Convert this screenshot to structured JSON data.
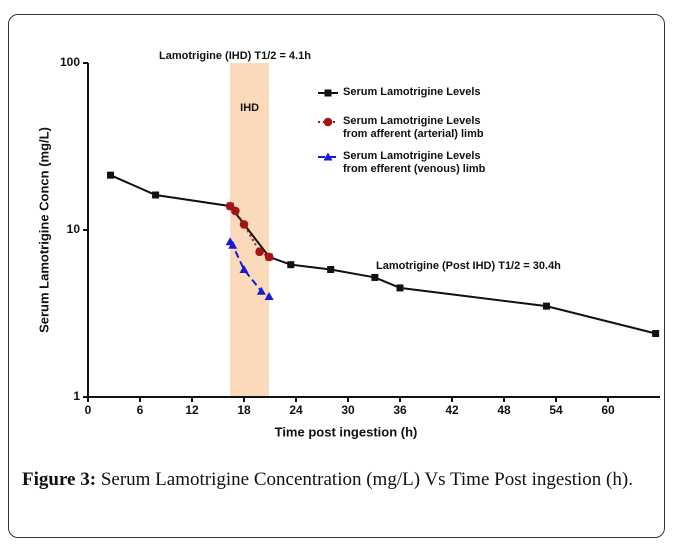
{
  "chart_data": {
    "type": "line",
    "xlabel": "Time post ingestion (h)",
    "ylabel": "Serum Lamotrigine Concn (mg/L)",
    "xlim": [
      0,
      66
    ],
    "xticks": [
      0,
      6,
      12,
      18,
      24,
      30,
      36,
      42,
      48,
      54,
      60
    ],
    "ylim": [
      1,
      100
    ],
    "yticks": [
      1,
      10,
      100
    ],
    "yscale": "log",
    "shaded_region": {
      "x": [
        16.4,
        20.9
      ],
      "color": "#fbdabb",
      "label": "IHD"
    },
    "annotations": [
      "Lamotrigine (IHD) T1/2 = 4.1h",
      "Lamotrigine (Post IHD) T1/2 = 30.4h"
    ],
    "series": [
      {
        "name": "Serum Lamotrigine Levels",
        "color": "#111111",
        "marker": "square",
        "linestyle": "solid",
        "x": [
          2.6,
          7.8,
          16.4,
          20.9,
          23.4,
          28.0,
          33.1,
          36.0,
          52.9,
          65.5
        ],
        "values": [
          21.3,
          16.2,
          13.9,
          6.9,
          6.2,
          5.8,
          5.2,
          4.5,
          3.5,
          2.4
        ]
      },
      {
        "name": "Serum Lamotrigine Levels from afferent (arterial) limb",
        "color": "#a31515",
        "marker": "circle",
        "linestyle": "dotted",
        "x": [
          16.4,
          17.0,
          18.0,
          19.8,
          20.9
        ],
        "values": [
          13.9,
          13.0,
          10.8,
          7.4,
          6.9
        ]
      },
      {
        "name": "Serum Lamotrigine Levels from efferent (venous) limb",
        "color": "#1a1ad6",
        "marker": "triangle",
        "linestyle": "dashed",
        "x": [
          16.4,
          16.7,
          18.0,
          20.0,
          20.9
        ],
        "values": [
          8.5,
          8.1,
          5.8,
          4.3,
          4.0
        ]
      }
    ]
  },
  "caption": {
    "label": "Figure 3:",
    "text": "Serum Lamotrigine Concentration (mg/L) Vs Time Post ingestion (h)."
  }
}
